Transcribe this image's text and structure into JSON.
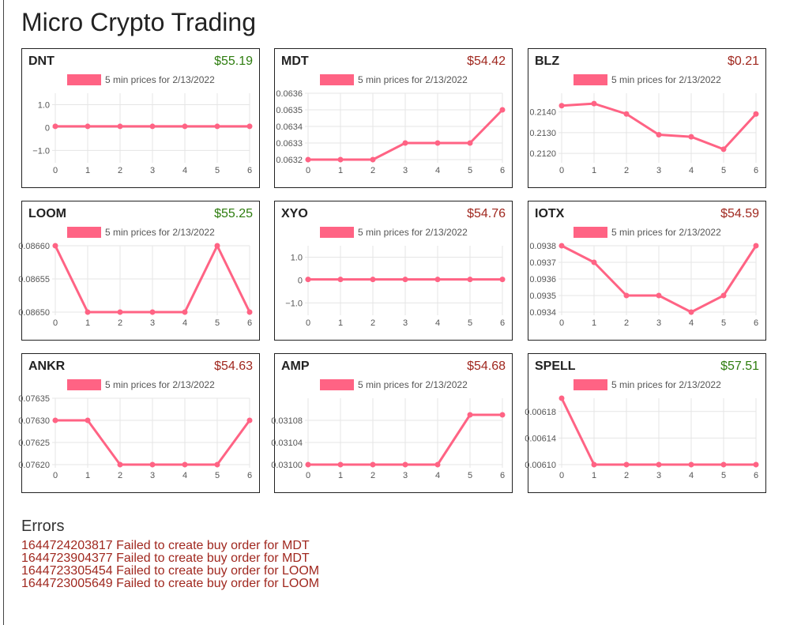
{
  "page": {
    "title": "Micro Crypto Trading"
  },
  "colors": {
    "line": "#ff6384",
    "up": "#2e7d0f",
    "down": "#a0281f"
  },
  "chart_data": [
    {
      "type": "line",
      "symbol": "DNT",
      "price": "$55.19",
      "trend": "up",
      "legend": "5 min prices for 2/13/2022",
      "x": [
        0,
        1,
        2,
        3,
        4,
        5,
        6
      ],
      "values": [
        0.054,
        0.053,
        0.053,
        0.053,
        0.053,
        0.053,
        0.054
      ],
      "ylim": [
        -1.4,
        1.5
      ],
      "yticks": [
        1.0,
        0,
        -1.0
      ],
      "yticklabels": [
        "1.0",
        "0",
        "−1.0"
      ]
    },
    {
      "type": "line",
      "symbol": "MDT",
      "price": "$54.42",
      "trend": "down",
      "legend": "5 min prices for 2/13/2022",
      "x": [
        0,
        1,
        2,
        3,
        4,
        5,
        6
      ],
      "values": [
        0.0632,
        0.0632,
        0.0632,
        0.0633,
        0.0633,
        0.0633,
        0.0635
      ],
      "ylim": [
        0.0632,
        0.0636
      ],
      "yticks": [
        0.0636,
        0.0635,
        0.0634,
        0.0633,
        0.0632
      ],
      "yticklabels": [
        "0.0636",
        "0.0635",
        "0.0634",
        "0.0633",
        "0.0632"
      ]
    },
    {
      "type": "line",
      "symbol": "BLZ",
      "price": "$0.21",
      "trend": "down",
      "legend": "5 min prices for 2/13/2022",
      "x": [
        0,
        1,
        2,
        3,
        4,
        5,
        6
      ],
      "values": [
        0.2143,
        0.2144,
        0.2139,
        0.2129,
        0.2128,
        0.2122,
        0.2139
      ],
      "ylim": [
        0.2117,
        0.2149
      ],
      "yticks": [
        0.214,
        0.213,
        0.212
      ],
      "yticklabels": [
        "0.2140",
        "0.2130",
        "0.2120"
      ]
    },
    {
      "type": "line",
      "symbol": "LOOM",
      "price": "$55.25",
      "trend": "up",
      "legend": "5 min prices for 2/13/2022",
      "x": [
        0,
        1,
        2,
        3,
        4,
        5,
        6
      ],
      "values": [
        0.0866,
        0.0865,
        0.0865,
        0.0865,
        0.0865,
        0.0866,
        0.0865
      ],
      "ylim": [
        0.0865,
        0.0866
      ],
      "yticks": [
        0.0866,
        0.08655,
        0.0865
      ],
      "yticklabels": [
        "0.08660",
        "0.08655",
        "0.08650"
      ]
    },
    {
      "type": "line",
      "symbol": "XYO",
      "price": "$54.76",
      "trend": "down",
      "legend": "5 min prices for 2/13/2022",
      "x": [
        0,
        1,
        2,
        3,
        4,
        5,
        6
      ],
      "values": [
        0.028,
        0.027,
        0.027,
        0.027,
        0.027,
        0.027,
        0.028
      ],
      "ylim": [
        -1.4,
        1.5
      ],
      "yticks": [
        1.0,
        0,
        -1.0
      ],
      "yticklabels": [
        "1.0",
        "0",
        "−1.0"
      ]
    },
    {
      "type": "line",
      "symbol": "IOTX",
      "price": "$54.59",
      "trend": "down",
      "legend": "5 min prices for 2/13/2022",
      "x": [
        0,
        1,
        2,
        3,
        4,
        5,
        6
      ],
      "values": [
        0.0938,
        0.0937,
        0.0935,
        0.0935,
        0.0934,
        0.0935,
        0.0938
      ],
      "ylim": [
        0.0934,
        0.0938
      ],
      "yticks": [
        0.0938,
        0.0937,
        0.0936,
        0.0935,
        0.0934
      ],
      "yticklabels": [
        "0.0938",
        "0.0937",
        "0.0936",
        "0.0935",
        "0.0934"
      ]
    },
    {
      "type": "line",
      "symbol": "ANKR",
      "price": "$54.63",
      "trend": "down",
      "legend": "5 min prices for 2/13/2022",
      "x": [
        0,
        1,
        2,
        3,
        4,
        5,
        6
      ],
      "values": [
        0.0763,
        0.0763,
        0.0762,
        0.0762,
        0.0762,
        0.0762,
        0.0763
      ],
      "ylim": [
        0.0762,
        0.07635
      ],
      "yticks": [
        0.07635,
        0.0763,
        0.07625,
        0.0762
      ],
      "yticklabels": [
        "0.07635",
        "0.07630",
        "0.07625",
        "0.07620"
      ]
    },
    {
      "type": "line",
      "symbol": "AMP",
      "price": "$54.68",
      "trend": "down",
      "legend": "5 min prices for 2/13/2022",
      "x": [
        0,
        1,
        2,
        3,
        4,
        5,
        6
      ],
      "values": [
        0.031,
        0.031,
        0.031,
        0.031,
        0.031,
        0.03109,
        0.03109
      ],
      "ylim": [
        0.031,
        0.03112
      ],
      "yticks": [
        0.03108,
        0.03104,
        0.031
      ],
      "yticklabels": [
        "0.03108",
        "0.03104",
        "0.03100"
      ]
    },
    {
      "type": "line",
      "symbol": "SPELL",
      "price": "$57.51",
      "trend": "up",
      "legend": "5 min prices for 2/13/2022",
      "x": [
        0,
        1,
        2,
        3,
        4,
        5,
        6
      ],
      "values": [
        0.0062,
        0.0061,
        0.0061,
        0.0061,
        0.0061,
        0.0061,
        0.0061
      ],
      "ylim": [
        0.0061,
        0.0062
      ],
      "yticks": [
        0.00618,
        0.00614,
        0.0061
      ],
      "yticklabels": [
        "0.00618",
        "0.00614",
        "0.00610"
      ]
    }
  ],
  "errors": {
    "heading": "Errors",
    "items": [
      "1644724203817 Failed to create buy order for MDT",
      "1644723904377 Failed to create buy order for MDT",
      "1644723305454 Failed to create buy order for LOOM",
      "1644723005649 Failed to create buy order for LOOM"
    ]
  }
}
